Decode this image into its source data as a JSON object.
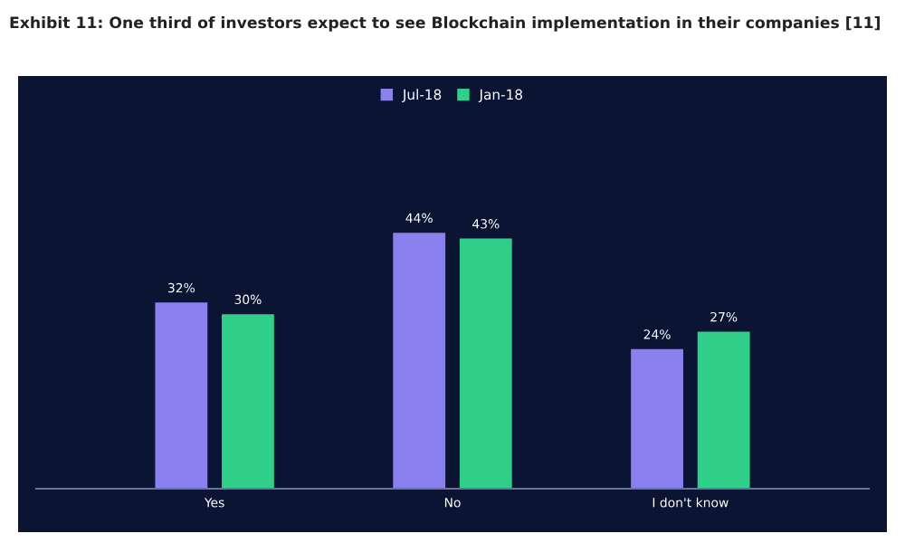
{
  "chart_data": {
    "type": "bar",
    "title": "Exhibit 11: One third of investors expect to see Blockchain implementation in their companies [11]",
    "categories": [
      "Yes",
      "No",
      "I don't know"
    ],
    "series": [
      {
        "name": "Jul-18",
        "color": "#8b80f0",
        "values": [
          32,
          44,
          24
        ],
        "value_labels": [
          "32%",
          "44%",
          "24%"
        ]
      },
      {
        "name": "Jan-18",
        "color": "#2fcf8a",
        "values": [
          30,
          43,
          27
        ],
        "value_labels": [
          "30%",
          "43%",
          "27%"
        ]
      }
    ],
    "legend": "top"
  }
}
